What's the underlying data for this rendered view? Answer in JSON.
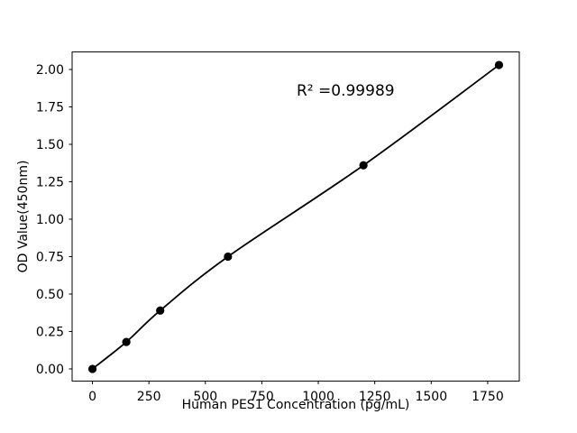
{
  "chart_data": {
    "type": "scatter",
    "title": "",
    "xlabel": "Human PES1 Concentration (pg/mL)",
    "ylabel": "OD Value(450nm)",
    "annotation": "R² =0.99989",
    "points": [
      {
        "x": 0,
        "y": 0.0
      },
      {
        "x": 150,
        "y": 0.18
      },
      {
        "x": 300,
        "y": 0.39
      },
      {
        "x": 600,
        "y": 0.75
      },
      {
        "x": 1200,
        "y": 1.36
      },
      {
        "x": 1800,
        "y": 2.03
      }
    ],
    "fit_line": true,
    "xlim": [
      -90,
      1890
    ],
    "ylim": [
      -0.081,
      2.117
    ],
    "x_ticks": {
      "values": [
        0,
        250,
        500,
        750,
        1000,
        1250,
        1500,
        1750
      ],
      "labels": [
        "0",
        "250",
        "500",
        "750",
        "1000",
        "1250",
        "1500",
        "1750"
      ]
    },
    "y_ticks": {
      "values": [
        0.0,
        0.25,
        0.5,
        0.75,
        1.0,
        1.25,
        1.5,
        1.75,
        2.0
      ],
      "labels": [
        "0.00",
        "0.25",
        "0.50",
        "0.75",
        "1.00",
        "1.25",
        "1.50",
        "1.75",
        "2.00"
      ]
    },
    "grid": false,
    "legend": "none",
    "colors": {
      "line": "#000000",
      "marker": "#000000",
      "text": "#000000",
      "spine": "#000000",
      "background": "#ffffff"
    }
  }
}
